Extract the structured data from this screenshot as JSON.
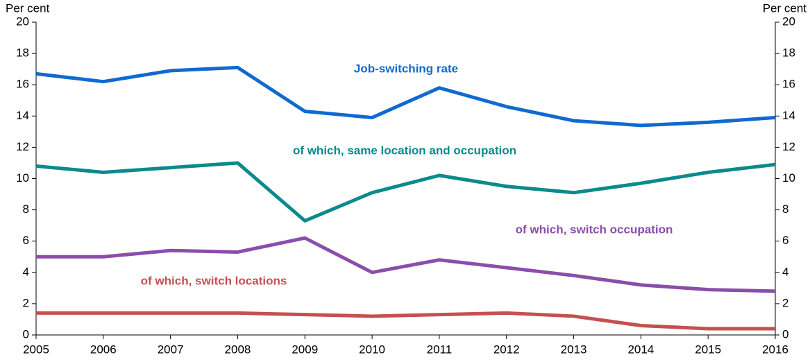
{
  "chart_data": {
    "type": "line",
    "y_label": "Per cent",
    "y2_label": "Per cent",
    "x": [
      2005,
      2006,
      2007,
      2008,
      2009,
      2010,
      2011,
      2012,
      2013,
      2014,
      2015,
      2016
    ],
    "xlim": [
      2005,
      2016
    ],
    "xticks": [
      2005,
      2006,
      2007,
      2008,
      2009,
      2010,
      2011,
      2012,
      2013,
      2014,
      2015,
      2016
    ],
    "ylim": [
      0,
      20
    ],
    "yticks": [
      0,
      2,
      4,
      6,
      8,
      10,
      12,
      14,
      16,
      18,
      20
    ],
    "y2lim": [
      0,
      20
    ],
    "y2ticks": [
      0,
      2,
      4,
      6,
      8,
      10,
      12,
      14,
      16,
      18,
      20
    ],
    "grid": false,
    "series": [
      {
        "name": "Job-switching rate",
        "color": "#0f6ad0",
        "values": [
          16.7,
          16.2,
          16.9,
          17.1,
          14.3,
          13.9,
          15.8,
          14.6,
          13.7,
          13.4,
          13.6,
          13.9
        ]
      },
      {
        "name": "of which, same location and occupation",
        "color": "#0b8a8c",
        "values": [
          10.8,
          10.4,
          10.7,
          11.0,
          7.3,
          9.1,
          10.2,
          9.5,
          9.1,
          9.7,
          10.4,
          10.9
        ]
      },
      {
        "name": "of which, switch occupation",
        "color": "#8b4dab",
        "values": [
          5.0,
          5.0,
          5.4,
          5.3,
          6.2,
          4.0,
          4.8,
          4.3,
          3.8,
          3.2,
          2.9,
          2.8
        ]
      },
      {
        "name": "of which, switch locations",
        "color": "#c4504f",
        "values": [
          1.4,
          1.4,
          1.4,
          1.4,
          1.3,
          1.2,
          1.3,
          1.4,
          1.2,
          0.6,
          0.4,
          0.4
        ]
      }
    ]
  }
}
